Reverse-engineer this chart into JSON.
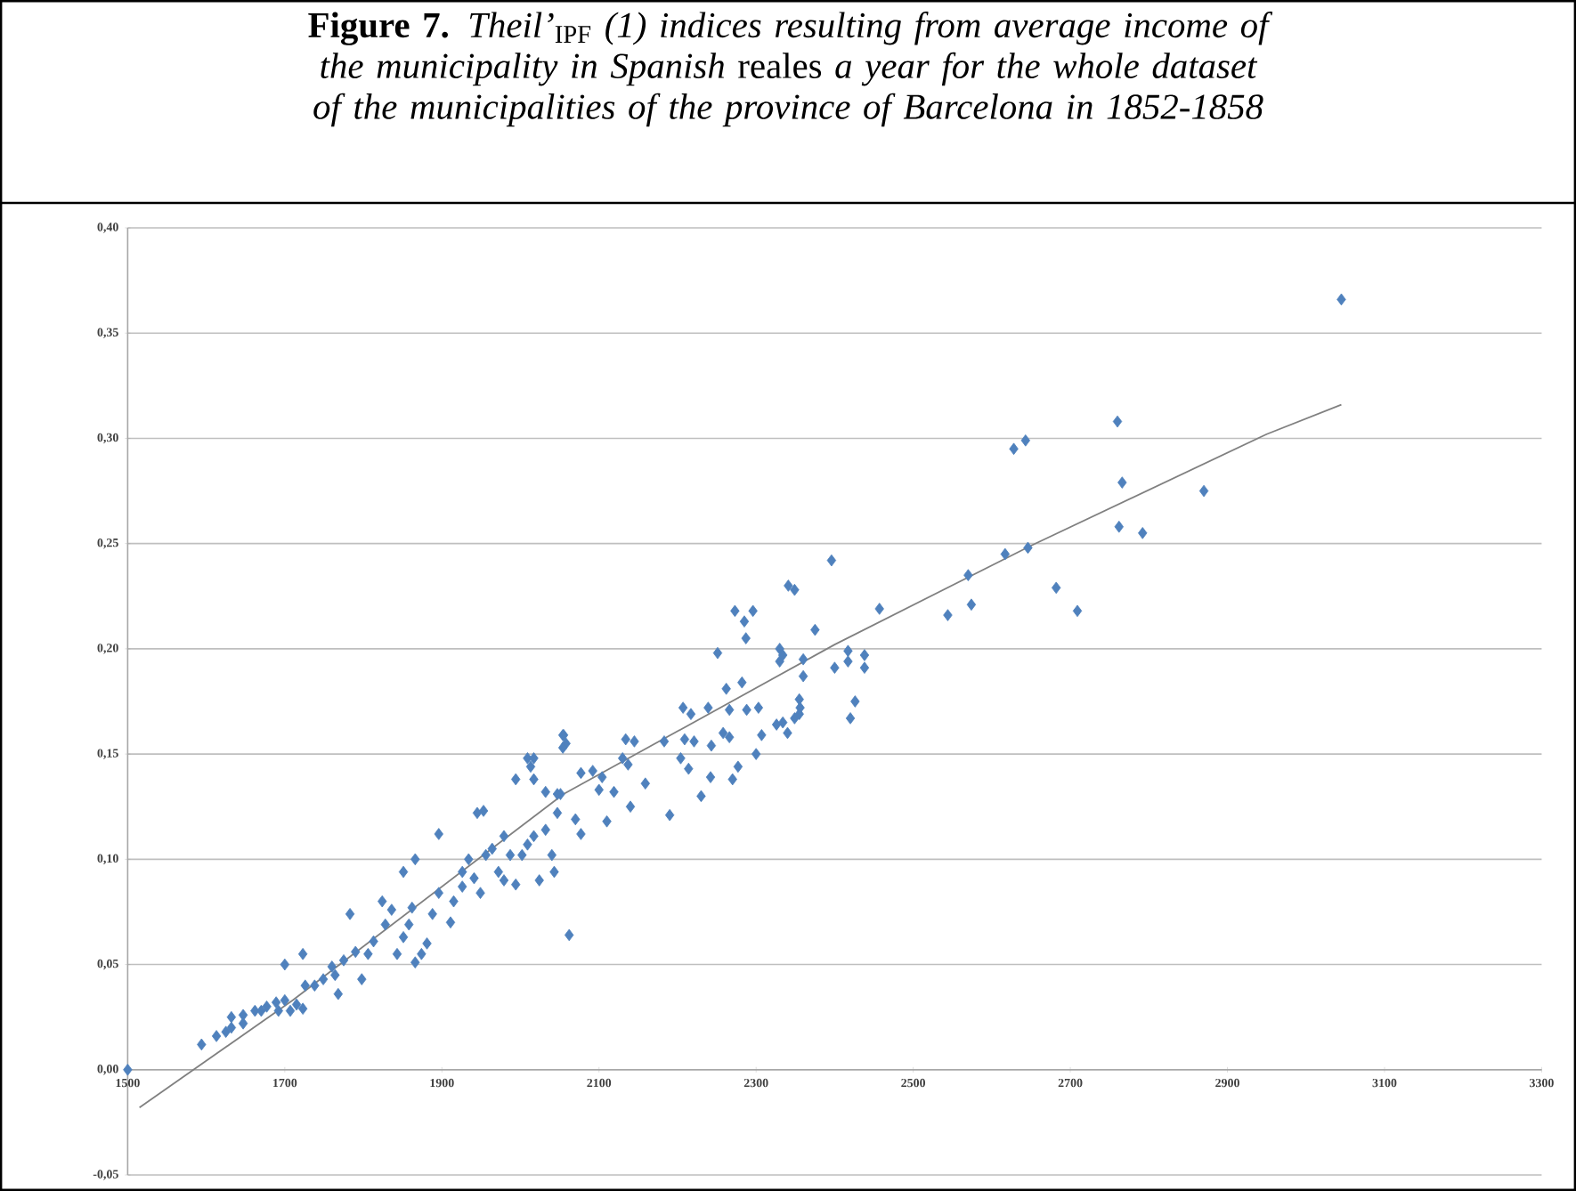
{
  "chart_data": {
    "type": "scatter",
    "title": "**Figure 7.** *Theil’*$_{IPF}$ *(1) indices resulting from average income of the municipality in Spanish* reales *a year for the whole dataset of the municipalities of the province of Barcelona in 1852-1858*",
    "xlim": [
      1500,
      3300
    ],
    "xticks": [
      1500,
      1700,
      1900,
      2100,
      2300,
      2500,
      2700,
      2900,
      3100,
      3300
    ],
    "ylim": [
      -0.05,
      0.4
    ],
    "yticks": [
      {
        "value": -0.05,
        "label": "-0,05"
      },
      {
        "value": 0,
        "label": "0,00"
      },
      {
        "value": 0.05,
        "label": "0,05"
      },
      {
        "value": 0.1,
        "label": "0,10"
      },
      {
        "value": 0.15,
        "label": "0,15"
      },
      {
        "value": 0.2,
        "label": "0,20"
      },
      {
        "value": 0.25,
        "label": "0,25"
      },
      {
        "value": 0.3,
        "label": "0,30"
      },
      {
        "value": 0.35,
        "label": "0,35"
      },
      {
        "value": 0.4,
        "label": "0,40"
      }
    ],
    "grid": "y",
    "marker": "diamond",
    "series": [
      {
        "color": "#4f81bd",
        "x": [
          1500,
          1594,
          1613,
          1625,
          1632,
          1632,
          1647,
          1647,
          1662,
          1670,
          1677,
          1689,
          1700,
          1692,
          1700,
          1707,
          1715,
          1723,
          1726,
          1723,
          1738,
          1749,
          1760,
          1764,
          1768,
          1783,
          1775,
          1790,
          1798,
          1806,
          1813,
          1824,
          1828,
          1836,
          1843,
          1851,
          1858,
          1862,
          1851,
          1866,
          1874,
          1881,
          1866,
          1888,
          1896,
          1896,
          1911,
          1915,
          1926,
          1926,
          1934,
          1941,
          1949,
          1956,
          1945,
          1953,
          1964,
          1972,
          1979,
          1987,
          1979,
          1994,
          2002,
          2009,
          2017,
          2009,
          2024,
          2040,
          2043,
          2017,
          2032,
          2047,
          2051,
          2062,
          2055,
          2058,
          2070,
          2077,
          2032,
          2047,
          2100,
          2119,
          2077,
          2092,
          2104,
          1994,
          2017,
          2013,
          2054,
          2054,
          2130,
          2137,
          2134,
          2145,
          2159,
          2242,
          2277,
          2204,
          2214,
          2183,
          2209,
          2221,
          2258,
          2266,
          2243,
          2307,
          2326,
          2349,
          2356,
          2239,
          2266,
          2288,
          2303,
          2207,
          2217,
          2262,
          2282,
          2251,
          2330,
          2330,
          2287,
          2273,
          2296,
          2285,
          2110,
          2140,
          2190,
          2230,
          2270,
          2300,
          2340,
          2334,
          2334,
          2355,
          2355,
          2426,
          2420,
          2360,
          2360,
          2400,
          2417,
          2438,
          2438,
          2417,
          2341,
          2349,
          2375,
          2396,
          2457,
          2544,
          2574,
          2570,
          2617,
          2646,
          2682,
          2709,
          2628,
          2643,
          2762,
          2792,
          2766,
          2760,
          2870,
          3045
        ],
        "values": [
          0.0,
          0.012,
          0.016,
          0.018,
          0.02,
          0.025,
          0.026,
          0.022,
          0.028,
          0.028,
          0.03,
          0.032,
          0.033,
          0.028,
          0.05,
          0.028,
          0.031,
          0.029,
          0.04,
          0.055,
          0.04,
          0.043,
          0.049,
          0.045,
          0.036,
          0.074,
          0.052,
          0.056,
          0.043,
          0.055,
          0.061,
          0.08,
          0.069,
          0.076,
          0.055,
          0.063,
          0.069,
          0.077,
          0.094,
          0.1,
          0.055,
          0.06,
          0.051,
          0.074,
          0.084,
          0.112,
          0.07,
          0.08,
          0.094,
          0.087,
          0.1,
          0.091,
          0.084,
          0.102,
          0.122,
          0.123,
          0.105,
          0.094,
          0.111,
          0.102,
          0.09,
          0.088,
          0.102,
          0.107,
          0.138,
          0.148,
          0.09,
          0.102,
          0.094,
          0.111,
          0.114,
          0.122,
          0.131,
          0.064,
          0.159,
          0.155,
          0.119,
          0.112,
          0.132,
          0.131,
          0.133,
          0.132,
          0.141,
          0.142,
          0.139,
          0.138,
          0.148,
          0.144,
          0.159,
          0.153,
          0.148,
          0.145,
          0.157,
          0.156,
          0.136,
          0.139,
          0.144,
          0.148,
          0.143,
          0.156,
          0.157,
          0.156,
          0.16,
          0.158,
          0.154,
          0.159,
          0.164,
          0.167,
          0.172,
          0.172,
          0.171,
          0.171,
          0.172,
          0.172,
          0.169,
          0.181,
          0.184,
          0.198,
          0.2,
          0.194,
          0.205,
          0.218,
          0.218,
          0.213,
          0.118,
          0.125,
          0.121,
          0.13,
          0.138,
          0.15,
          0.16,
          0.197,
          0.165,
          0.176,
          0.169,
          0.175,
          0.167,
          0.195,
          0.187,
          0.191,
          0.199,
          0.197,
          0.191,
          0.194,
          0.23,
          0.228,
          0.209,
          0.242,
          0.219,
          0.216,
          0.221,
          0.235,
          0.245,
          0.248,
          0.229,
          0.218,
          0.295,
          0.299,
          0.258,
          0.255,
          0.279,
          0.308,
          0.275,
          0.366
        ]
      },
      {
        "type": "line",
        "color": "#808080",
        "marker": "none",
        "line_style": "solid",
        "x": [
          1515,
          1710,
          2055,
          2400,
          2650,
          2950,
          3045
        ],
        "values": [
          -0.018,
          0.033,
          0.131,
          0.202,
          0.249,
          0.302,
          0.316
        ]
      }
    ]
  }
}
